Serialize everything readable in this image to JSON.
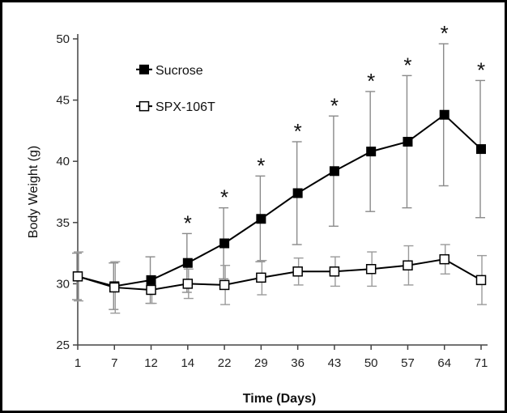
{
  "chart_data": {
    "type": "line",
    "title": "",
    "xlabel": "Time (Days)",
    "ylabel": "Body Weight (g)",
    "categories": [
      "1",
      "7",
      "12",
      "14",
      "22",
      "29",
      "36",
      "43",
      "50",
      "57",
      "64",
      "71"
    ],
    "ylim": [
      25,
      50
    ],
    "yticks": [
      25,
      30,
      35,
      40,
      45,
      50
    ],
    "grid": false,
    "legend_position": "top-left",
    "significance_marker": "*",
    "series": [
      {
        "name": "Sucrose",
        "marker": "filled-square",
        "color": "#000000",
        "values": [
          30.6,
          29.8,
          30.3,
          31.7,
          33.3,
          35.3,
          37.4,
          39.2,
          40.8,
          41.6,
          43.8,
          41.0
        ],
        "errors": [
          1.9,
          1.9,
          1.9,
          2.4,
          2.9,
          3.5,
          4.2,
          4.5,
          4.9,
          5.4,
          5.8,
          5.6
        ],
        "significant": [
          false,
          false,
          false,
          true,
          true,
          true,
          true,
          true,
          true,
          true,
          true,
          true
        ]
      },
      {
        "name": "SPX-106T",
        "marker": "open-square",
        "color": "#000000",
        "values": [
          30.6,
          29.7,
          29.5,
          30.0,
          29.9,
          30.5,
          31.0,
          31.0,
          31.2,
          31.5,
          32.0,
          30.3
        ],
        "errors": [
          2.0,
          2.1,
          1.1,
          1.2,
          1.6,
          1.4,
          1.1,
          1.2,
          1.4,
          1.6,
          1.2,
          2.0
        ]
      }
    ]
  }
}
